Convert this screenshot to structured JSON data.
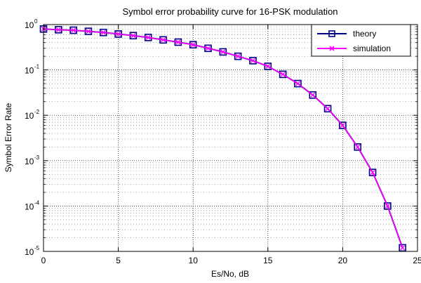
{
  "chart_data": {
    "type": "line",
    "title": "Symbol error probability curve for 16-PSK modulation",
    "xlabel": "Es/No, dB",
    "ylabel": "Symbol Error Rate",
    "xlim": [
      0,
      25
    ],
    "ylim": [
      1e-05,
      1
    ],
    "yscale": "log",
    "grid": true,
    "legend_position": "top-right",
    "x_ticks": [
      "0",
      "5",
      "10",
      "15",
      "20",
      "25"
    ],
    "y_ticks": [
      {
        "base": "10",
        "exp": "-5"
      },
      {
        "base": "10",
        "exp": "-4"
      },
      {
        "base": "10",
        "exp": "-3"
      },
      {
        "base": "10",
        "exp": "-2"
      },
      {
        "base": "10",
        "exp": "-1"
      },
      {
        "base": "10",
        "exp": "0"
      }
    ],
    "x": [
      0,
      1,
      2,
      3,
      4,
      5,
      6,
      7,
      8,
      9,
      10,
      11,
      12,
      13,
      14,
      15,
      16,
      17,
      18,
      19,
      20,
      21,
      22,
      23,
      24
    ],
    "series": [
      {
        "name": "theory",
        "color": "#00008B",
        "marker": "square",
        "values": [
          0.8,
          0.77,
          0.75,
          0.71,
          0.67,
          0.62,
          0.57,
          0.52,
          0.46,
          0.41,
          0.36,
          0.3,
          0.25,
          0.2,
          0.16,
          0.12,
          0.08,
          0.05,
          0.028,
          0.014,
          0.006,
          0.002,
          0.00055,
          0.0001,
          1.2e-05
        ]
      },
      {
        "name": "simulation",
        "color": "#FF00FF",
        "marker": "x",
        "values": [
          0.8,
          0.77,
          0.75,
          0.71,
          0.67,
          0.62,
          0.57,
          0.52,
          0.46,
          0.41,
          0.36,
          0.3,
          0.25,
          0.2,
          0.16,
          0.12,
          0.08,
          0.05,
          0.028,
          0.014,
          0.006,
          0.002,
          0.00055,
          0.0001,
          1.2e-05
        ]
      }
    ]
  }
}
